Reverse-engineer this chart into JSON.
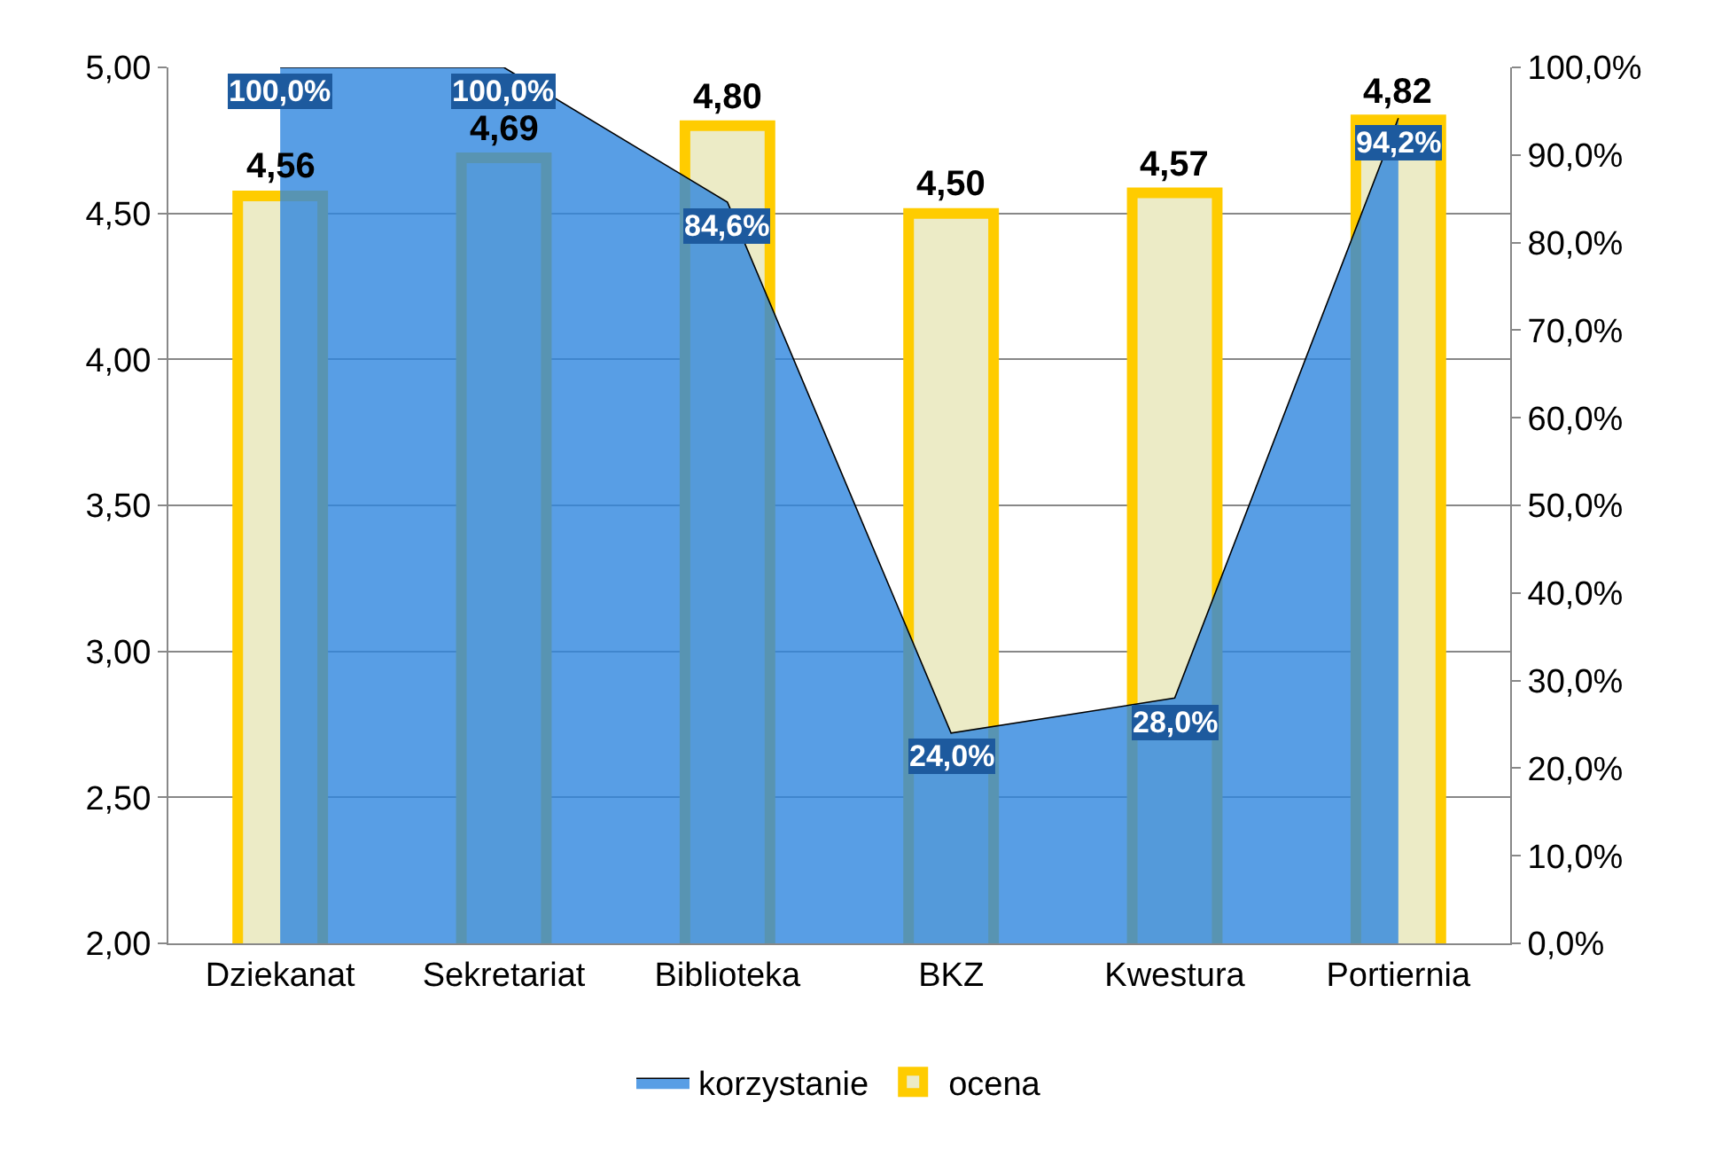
{
  "chart_data": {
    "type": "bar",
    "categories": [
      "Dziekanat",
      "Sekretariat",
      "Biblioteka",
      "BKZ",
      "Kwestura",
      "Portiernia"
    ],
    "series": [
      {
        "name": "korzystanie",
        "type": "area",
        "axis": "y2",
        "color": "#2e86de",
        "values": [
          100,
          100,
          84.6,
          24,
          28,
          94.2
        ],
        "value_labels": [
          "100,0%",
          "100,0%",
          "84,6%",
          "24,0%",
          "28,0%",
          "94,2%"
        ]
      },
      {
        "name": "ocena",
        "color": "#ffcc00",
        "values": [
          4.56,
          4.69,
          4.8,
          4.5,
          4.57,
          4.82
        ],
        "value_labels": [
          "4,56",
          "4,69",
          "4,80",
          "4,50",
          "4,57",
          "4,82"
        ]
      }
    ],
    "ylim": [
      2,
      5
    ],
    "yticks": [
      {
        "value": 2,
        "label": "2,00"
      },
      {
        "value": 2.5,
        "label": "2,50"
      },
      {
        "value": 3,
        "label": "3,00"
      },
      {
        "value": 3.5,
        "label": "3,50"
      },
      {
        "value": 4,
        "label": "4,00"
      },
      {
        "value": 4.5,
        "label": "4,50"
      },
      {
        "value": 5,
        "label": "5,00"
      }
    ],
    "y2lim": [
      0,
      100
    ],
    "y2ticks": [
      {
        "value": 0,
        "label": "0,0%"
      },
      {
        "value": 10,
        "label": "10,0%"
      },
      {
        "value": 20,
        "label": "20,0%"
      },
      {
        "value": 30,
        "label": "30,0%"
      },
      {
        "value": 40,
        "label": "40,0%"
      },
      {
        "value": 50,
        "label": "50,0%"
      },
      {
        "value": 60,
        "label": "60,0%"
      },
      {
        "value": 70,
        "label": "70,0%"
      },
      {
        "value": 80,
        "label": "80,0%"
      },
      {
        "value": 90,
        "label": "90,0%"
      },
      {
        "value": 100,
        "label": "100,0%"
      }
    ],
    "grid": "y",
    "legend": "bottom"
  }
}
